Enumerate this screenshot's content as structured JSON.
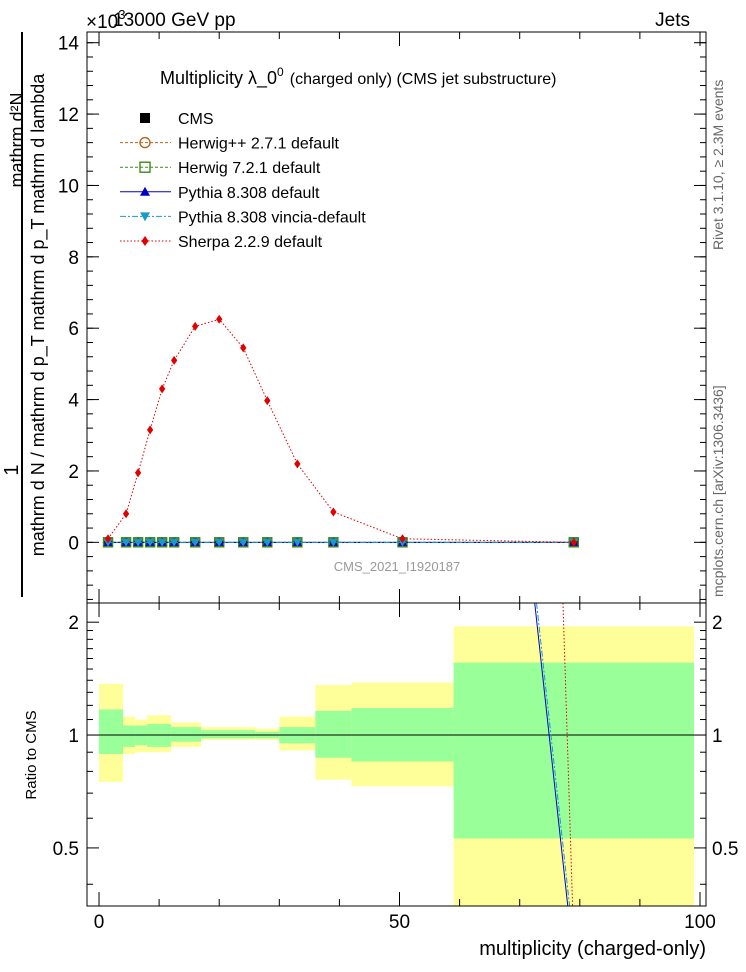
{
  "header": {
    "energy_label": "13000 GeV pp",
    "category": "Jets",
    "exponent": "×10",
    "exponent_power": "3"
  },
  "side_text": {
    "rivet": "Rivet 3.1.10, ≥ 2.3M events",
    "mcplots": "mcplots.cern.ch [arXiv:1306.3436]"
  },
  "chart_data": [
    {
      "type": "line",
      "title": "Multiplicity  λ_0",
      "title_sup": "0",
      "title_suffix": "(charged only) (CMS jet substructure)",
      "watermark": "CMS_2021_I1920187",
      "xlabel": "multiplicity (charged-only)",
      "ylabel_numerator": "mathrm d²N",
      "ylabel_denominator": "mathrm d N / mathrm d p_T mathrm d p_T mathrm d lambda",
      "ylabel_prefix": "1",
      "yscale_factor": 1000,
      "xlim": [
        -2,
        101
      ],
      "ylim": [
        -1.7,
        14.3
      ],
      "yticks": [
        0,
        2,
        4,
        6,
        8,
        10,
        12,
        14
      ],
      "ytick_labels": [
        "0",
        "2",
        "4",
        "6",
        "8",
        "10",
        "12",
        "14"
      ],
      "xticks": [
        0,
        50,
        100
      ],
      "xtick_labels": [
        "0",
        "50",
        "100"
      ],
      "x": [
        1.5,
        4.5,
        6.5,
        8.5,
        10.5,
        12.5,
        16,
        20,
        24,
        28,
        33,
        39,
        50.5,
        79
      ],
      "legend": [
        {
          "name": "CMS",
          "style": "data"
        },
        {
          "name": "Herwig++ 2.7.1 default",
          "style": "herwigpp"
        },
        {
          "name": "Herwig 7.2.1 default",
          "style": "herwig7"
        },
        {
          "name": "Pythia 8.308 default",
          "style": "pythia"
        },
        {
          "name": "Pythia 8.308 vincia-default",
          "style": "vincia"
        },
        {
          "name": "Sherpa 2.2.9 default",
          "style": "sherpa"
        }
      ],
      "series": [
        {
          "name": "CMS",
          "color": "#000000",
          "values": [
            0,
            0,
            0,
            0,
            0,
            0,
            0,
            0,
            0,
            0,
            0,
            0,
            0,
            0
          ]
        },
        {
          "name": "Herwig++ 2.7.1 default",
          "color": "#b5651d",
          "values": [
            0,
            0,
            0,
            0,
            0,
            0,
            0,
            0,
            0,
            0,
            0,
            0,
            0,
            0
          ]
        },
        {
          "name": "Herwig 7.2.1 default",
          "color": "#3a8a1a",
          "values": [
            0,
            0,
            0,
            0,
            0,
            0,
            0,
            0,
            0,
            0,
            0,
            0,
            0,
            0
          ]
        },
        {
          "name": "Pythia 8.308 default",
          "color": "#0000cc",
          "values": [
            0,
            0,
            0,
            0,
            0,
            0,
            0,
            0,
            0,
            0,
            0,
            0,
            0,
            0
          ]
        },
        {
          "name": "Pythia 8.308 vincia-default",
          "color": "#1a9ac8",
          "values": [
            0,
            0,
            0,
            0,
            0,
            0,
            0,
            0,
            0,
            0,
            0,
            0,
            0,
            0
          ]
        },
        {
          "name": "Sherpa 2.2.9 default",
          "color": "#e00000",
          "values": [
            0.1,
            0.8,
            1.95,
            3.15,
            4.3,
            5.1,
            6.05,
            6.25,
            5.45,
            3.97,
            2.2,
            0.85,
            0.1,
            0
          ]
        }
      ]
    },
    {
      "type": "area",
      "ylabel": "Ratio to CMS",
      "ylim": [
        0.35,
        2.25
      ],
      "yticks": [
        0.5,
        1,
        2
      ],
      "ytick_labels": [
        "0.5",
        "1",
        "2"
      ],
      "band_bins": [
        {
          "x0": 0,
          "x1": 4,
          "inner": [
            0.89,
            1.17
          ],
          "outer": [
            0.75,
            1.37
          ]
        },
        {
          "x0": 4,
          "x1": 6,
          "inner": [
            0.93,
            1.06
          ],
          "outer": [
            0.89,
            1.12
          ]
        },
        {
          "x0": 6,
          "x1": 8,
          "inner": [
            0.94,
            1.06
          ],
          "outer": [
            0.9,
            1.1
          ]
        },
        {
          "x0": 8,
          "x1": 12,
          "inner": [
            0.93,
            1.07
          ],
          "outer": [
            0.9,
            1.13
          ]
        },
        {
          "x0": 12,
          "x1": 17,
          "inner": [
            0.96,
            1.05
          ],
          "outer": [
            0.93,
            1.08
          ]
        },
        {
          "x0": 17,
          "x1": 26,
          "inner": [
            0.98,
            1.03
          ],
          "outer": [
            0.97,
            1.05
          ]
        },
        {
          "x0": 26,
          "x1": 30,
          "inner": [
            0.98,
            1.02
          ],
          "outer": [
            0.97,
            1.04
          ]
        },
        {
          "x0": 30,
          "x1": 36,
          "inner": [
            0.95,
            1.05
          ],
          "outer": [
            0.91,
            1.12
          ]
        },
        {
          "x0": 36,
          "x1": 42,
          "inner": [
            0.87,
            1.16
          ],
          "outer": [
            0.76,
            1.36
          ]
        },
        {
          "x0": 42,
          "x1": 59,
          "inner": [
            0.85,
            1.18
          ],
          "outer": [
            0.73,
            1.38
          ]
        },
        {
          "x0": 59,
          "x1": 99,
          "inner": [
            0.53,
            1.56
          ],
          "outer": [
            0.35,
            1.95
          ]
        }
      ],
      "ratio_lines": [
        {
          "name": "Pythia 8.308 default",
          "color": "#0000cc",
          "x": [
            72.5,
            78.0
          ],
          "values": [
            2.25,
            0.35
          ]
        },
        {
          "name": "Pythia 8.308 vincia-default",
          "color": "#1a9ac8",
          "x": [
            72.8,
            78.3
          ],
          "values": [
            2.25,
            0.35
          ]
        },
        {
          "name": "Sherpa 2.2.9 default",
          "color": "#e00000",
          "x": [
            77.2,
            78.8
          ],
          "values": [
            2.25,
            0.35
          ]
        }
      ]
    }
  ]
}
